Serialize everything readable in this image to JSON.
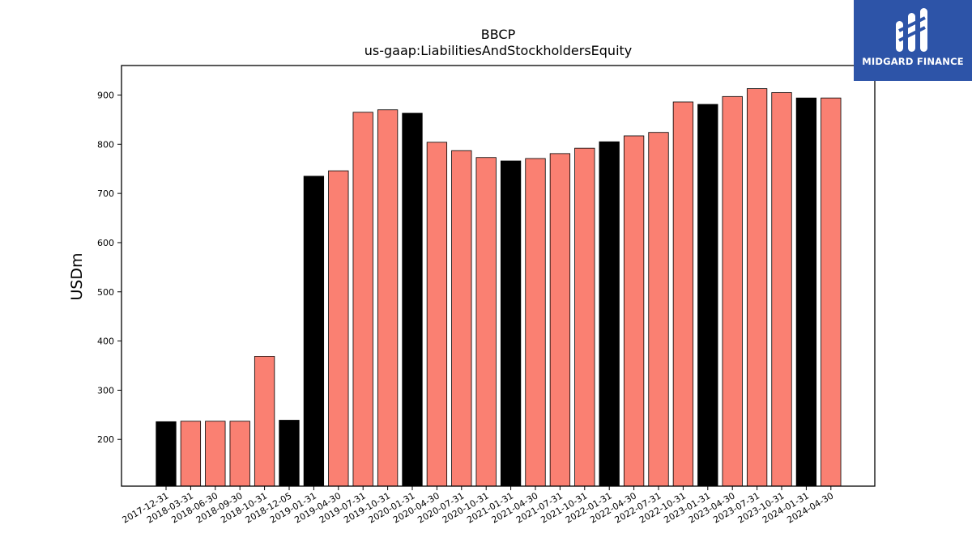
{
  "chart_data": {
    "type": "bar",
    "title": "BBCP",
    "subtitle": "us-gaap:LiabilitiesAndStockholdersEquity",
    "xlabel": "",
    "ylabel": "USDm",
    "ylim": [
      105,
      960
    ],
    "yticks": [
      200,
      300,
      400,
      500,
      600,
      700,
      800,
      900
    ],
    "grid": false,
    "categories": [
      "2017-12-31",
      "2018-03-31",
      "2018-06-30",
      "2018-09-30",
      "2018-10-31",
      "2018-12-05",
      "2019-01-31",
      "2019-04-30",
      "2019-07-31",
      "2019-10-31",
      "2020-01-31",
      "2020-04-30",
      "2020-07-31",
      "2020-10-31",
      "2021-01-31",
      "2021-04-30",
      "2021-07-31",
      "2021-10-31",
      "2022-01-31",
      "2022-04-30",
      "2022-07-31",
      "2022-10-31",
      "2023-01-31",
      "2023-04-30",
      "2023-07-31",
      "2023-10-31",
      "2024-01-31",
      "2024-04-30"
    ],
    "values": [
      236,
      237,
      237,
      237,
      369,
      239,
      735,
      746,
      865,
      870,
      863,
      804,
      787,
      773,
      766,
      771,
      781,
      792,
      805,
      817,
      824,
      886,
      881,
      897,
      913,
      905,
      894,
      894
    ],
    "bar_colors": [
      "#000000",
      "#fa8072",
      "#fa8072",
      "#fa8072",
      "#fa8072",
      "#000000",
      "#000000",
      "#fa8072",
      "#fa8072",
      "#fa8072",
      "#000000",
      "#fa8072",
      "#fa8072",
      "#fa8072",
      "#000000",
      "#fa8072",
      "#fa8072",
      "#fa8072",
      "#000000",
      "#fa8072",
      "#fa8072",
      "#fa8072",
      "#000000",
      "#fa8072",
      "#fa8072",
      "#fa8072",
      "#000000",
      "#fa8072"
    ]
  },
  "logo": {
    "text": "MIDGARD FINANCE",
    "background": "#2d54a8",
    "icon": "midgard-logo-icon"
  }
}
